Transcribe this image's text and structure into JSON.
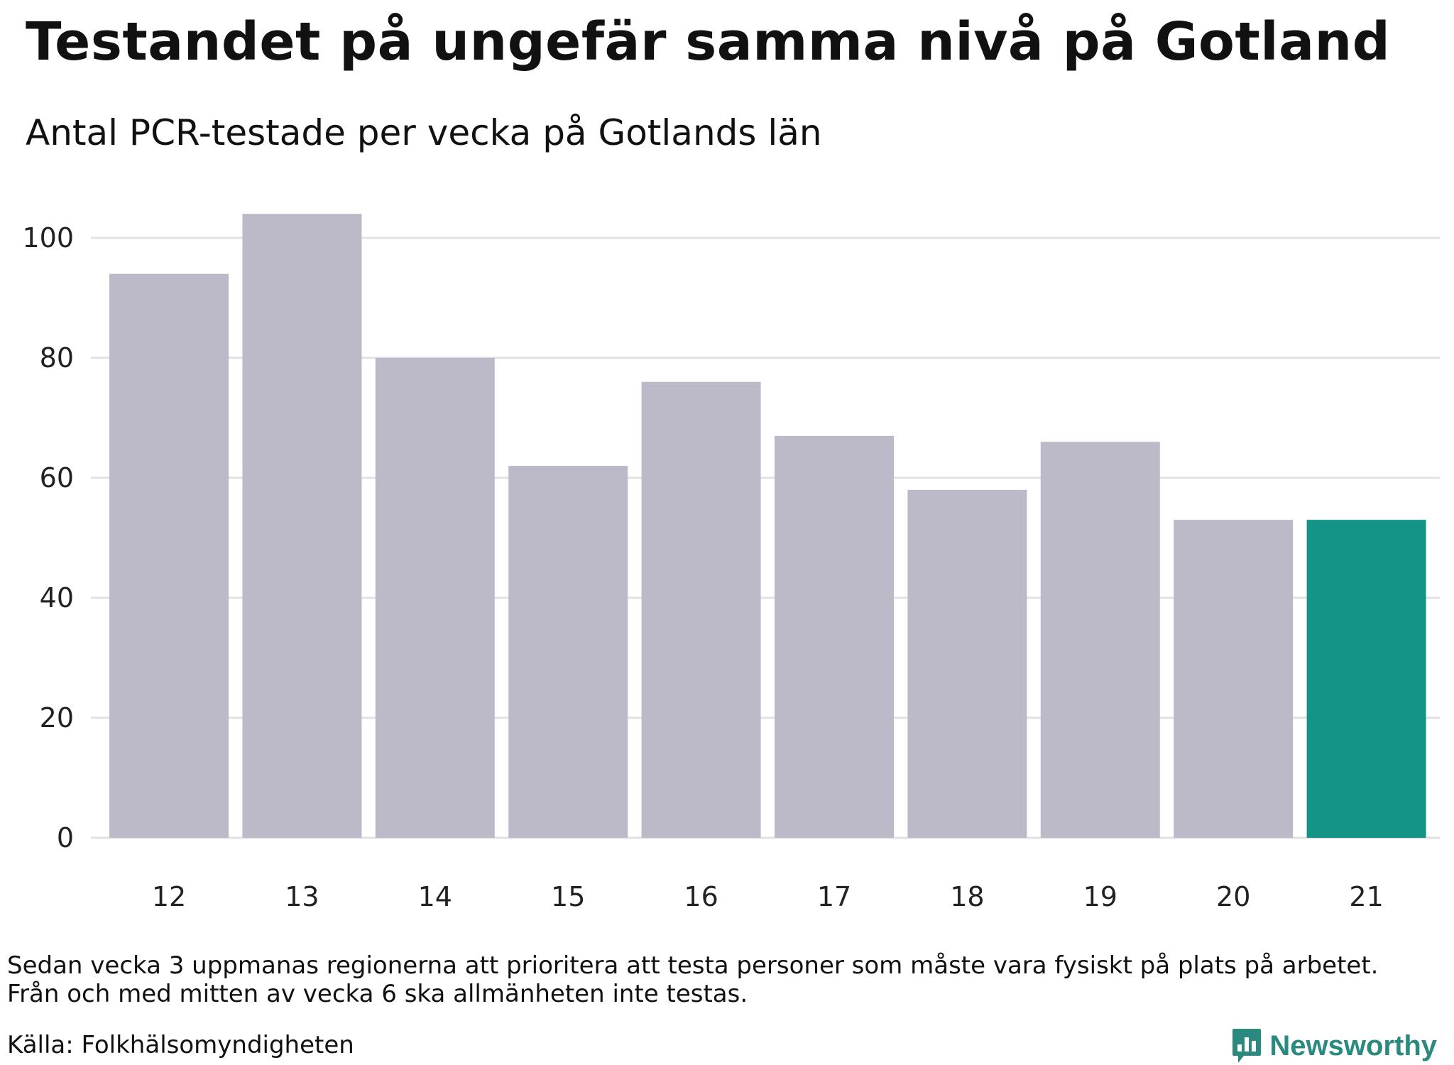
{
  "header": {
    "title": "Testandet på ungefär samma nivå på Gotland",
    "subtitle": "Antal PCR-testade per vecka på Gotlands län"
  },
  "footer": {
    "note_lines": [
      "Sedan vecka 3 uppmanas regionerna att prioritera att testa personer som måste vara fysiskt på plats på arbetet.",
      "Från och med mitten av vecka 6 ska allmänheten inte testas."
    ],
    "source": "Källa: Folkhälsomyndigheten",
    "brand": "Newsworthy",
    "brand_icon": "bar-chart-icon"
  },
  "colors": {
    "bar": "#bcbac8",
    "highlight": "#149486",
    "grid": "#e1e1e6",
    "brand": "#2a8a80"
  },
  "chart_data": {
    "type": "bar",
    "title": "Testandet på ungefär samma nivå på Gotland",
    "subtitle": "Antal PCR-testade per vecka på Gotlands län",
    "categories": [
      "12",
      "13",
      "14",
      "15",
      "16",
      "17",
      "18",
      "19",
      "20",
      "21"
    ],
    "values": [
      94,
      104,
      80,
      62,
      76,
      67,
      58,
      66,
      53,
      53
    ],
    "highlight_index": 9,
    "xlabel": "",
    "ylabel": "",
    "ylim": [
      0,
      110
    ],
    "yticks": [
      0,
      20,
      40,
      60,
      80,
      100
    ],
    "grid": true,
    "legend": "none"
  }
}
